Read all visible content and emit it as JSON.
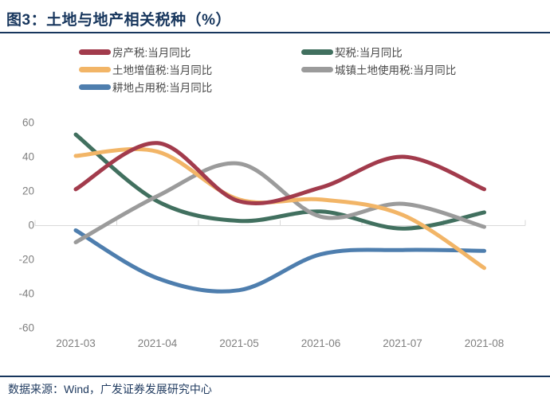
{
  "figure": {
    "title": "图3：土地与地产相关税种（%）",
    "source": "数据来源：Wind，广发证券发展研究中心"
  },
  "colors": {
    "title_text": "#17365D",
    "divider": "#17365D",
    "axis_line": "#D9D9D9",
    "axis_label": "#808080",
    "legend_text": "#4A4A4A",
    "footer_text": "#1F3A5F",
    "background": "#FFFFFF"
  },
  "chart_data": {
    "type": "line",
    "smooth": true,
    "x": [
      "2021-03",
      "2021-04",
      "2021-05",
      "2021-06",
      "2021-07",
      "2021-08"
    ],
    "series": [
      {
        "id": "property-tax",
        "name": "房产税:当月同比",
        "color": "#A23B4C",
        "values": [
          21,
          48,
          14,
          22,
          40,
          21
        ]
      },
      {
        "id": "deed-tax",
        "name": "契税:当月同比",
        "color": "#41705F",
        "values": [
          53,
          14,
          2.5,
          8,
          -2,
          7.5
        ]
      },
      {
        "id": "land-appreciation-tax",
        "name": "土地增值税:当月同比",
        "color": "#F2B567",
        "values": [
          40.5,
          43,
          15,
          15,
          6,
          -25
        ]
      },
      {
        "id": "urban-land-use-tax",
        "name": "城镇土地使用税:当月同比",
        "color": "#9B9B9B",
        "values": [
          -10,
          17,
          36,
          5,
          12.5,
          -1
        ]
      },
      {
        "id": "farmland-occupation-tax",
        "name": "耕地占用税:当月同比",
        "color": "#4E7EAE",
        "values": [
          -3,
          -31,
          -38,
          -17,
          -14.5,
          -15
        ]
      }
    ],
    "ylim": [
      -60,
      60
    ],
    "yticks": [
      60,
      40,
      20,
      0,
      -20,
      -40,
      -60
    ],
    "grid": false,
    "legend_position": "top-left-two-columns",
    "line_width": 5
  }
}
